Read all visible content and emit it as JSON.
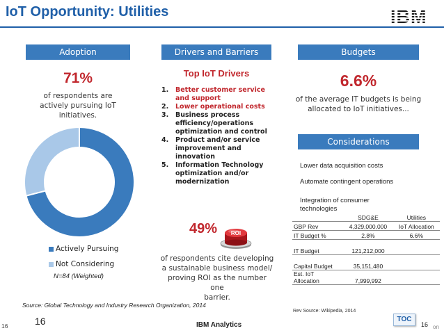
{
  "slide": {
    "title": "IoT Opportunity: Utilities",
    "logo_text": "IBM"
  },
  "adoption": {
    "header": "Adoption",
    "stat": "71%",
    "description_lines": [
      "of respondents are",
      "actively pursuing IoT",
      "initiatives."
    ],
    "legend": [
      "Actively Pursuing",
      "Not Considering"
    ],
    "sample": "N=84 (Weighted)"
  },
  "drivers": {
    "header": "Drivers and Barriers",
    "title": "Top IoT Drivers",
    "items": [
      {
        "num": "1.",
        "lines": [
          "Better customer service",
          "and support"
        ],
        "highlight": true
      },
      {
        "num": "2.",
        "lines": [
          "Lower operational costs"
        ],
        "highlight": true
      },
      {
        "num": "3.",
        "lines": [
          "Business process",
          "efficiency/operations",
          "optimization and control"
        ],
        "highlight": false
      },
      {
        "num": "4.",
        "lines": [
          "Product and/or service",
          "improvement and",
          "innovation"
        ],
        "highlight": false
      },
      {
        "num": "5.",
        "lines": [
          "Information Technology",
          "optimization and/or",
          "modernization"
        ],
        "highlight": false
      }
    ],
    "stat": "49%",
    "roi_badge": "ROI",
    "description_lines": [
      "of respondents cite developing",
      "a sustainable business model/",
      "proving ROI as the number one",
      "barrier."
    ]
  },
  "budgets": {
    "header": "Budgets",
    "stat": "6.6%",
    "description_lines": [
      "of the average IT budgets is being",
      "allocated to IoT initiatives..."
    ]
  },
  "considerations": {
    "header": "Considerations",
    "items": [
      [
        "Lower data acquisition costs"
      ],
      [
        "Automate contingent operations"
      ],
      [
        "Integration of consumer",
        "technologies"
      ]
    ]
  },
  "finance_table": {
    "columns": [
      "",
      "SDG&E",
      "Utilities"
    ],
    "rows": [
      {
        "label": [
          "GBP Rev"
        ],
        "value": "4,329,000,000",
        "extra": "IoT Allocation"
      },
      {
        "label": [
          "IT Budget %"
        ],
        "value": "2.8%",
        "extra": "6.6%"
      },
      {
        "label": [
          "IT Budget"
        ],
        "value": "121,212,000",
        "extra": ""
      },
      {
        "label": [
          "Capital Budget"
        ],
        "value": "35,151,480",
        "extra": ""
      },
      {
        "label": [
          "Est. IoT",
          "Allocation"
        ],
        "value": "7,999,992",
        "extra": ""
      }
    ],
    "source": "Rev Source: Wikipedia, 2014"
  },
  "footer": {
    "source": "Source: Global Technology and Industry Research Organization, 2014",
    "page_left": "16",
    "page_number": "16",
    "brand": "IBM Analytics",
    "toc": "TOC",
    "page_right": "16",
    "right_fragment": "on"
  },
  "chart_data": {
    "type": "pie",
    "variant": "donut",
    "categories": [
      "Actively Pursuing",
      "Not Considering"
    ],
    "values": [
      71,
      29
    ],
    "colors": [
      "#3a7bbd",
      "#a9c8e8"
    ],
    "title": "",
    "legend_position": "bottom"
  }
}
